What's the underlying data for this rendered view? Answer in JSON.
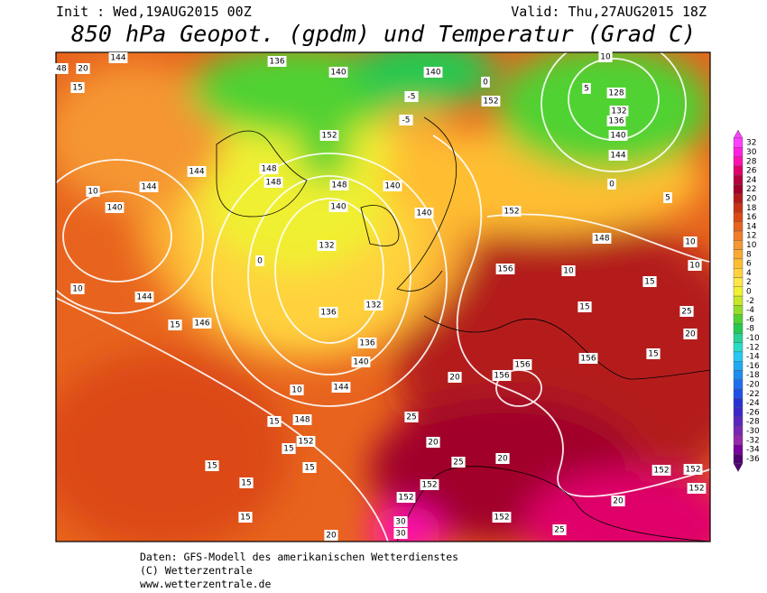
{
  "header": {
    "init": "Init : Wed,19AUG2015 00Z",
    "valid": "Valid: Thu,27AUG2015 18Z",
    "title": "850 hPa Geopot. (gpdm) und Temperatur (Grad C)"
  },
  "colorbar": {
    "labels": [
      32,
      30,
      28,
      26,
      24,
      22,
      20,
      18,
      16,
      14,
      12,
      10,
      8,
      6,
      4,
      2,
      0,
      -2,
      -4,
      -6,
      -8,
      -10,
      -12,
      -14,
      -16,
      -18,
      -20,
      -22,
      -24,
      -26,
      -28,
      -30,
      -32,
      -34,
      -36
    ],
    "colors": [
      "#ff40ff",
      "#ff20e0",
      "#ff10b0",
      "#e0006a",
      "#b4003c",
      "#a0002a",
      "#b41a1a",
      "#c83214",
      "#dc4a14",
      "#e6641e",
      "#f07d28",
      "#f59632",
      "#faaa32",
      "#ffbe32",
      "#ffd23c",
      "#ffe646",
      "#f0f032",
      "#c8e628",
      "#96dc28",
      "#50d232",
      "#28c850",
      "#28d296",
      "#28dcc8",
      "#28c8f0",
      "#1eaaf0",
      "#1e8cf0",
      "#1e6ef0",
      "#1e50e6",
      "#2832d2",
      "#3c28c8",
      "#5a28be",
      "#7828b4",
      "#9628aa",
      "#7800a0",
      "#500070"
    ]
  },
  "map": {
    "contour_labels": [
      "144",
      "136",
      "140",
      "140",
      "152",
      "128",
      "132",
      "136",
      "140",
      "144",
      "152",
      "148",
      "148",
      "144",
      "144",
      "140",
      "140",
      "140",
      "140",
      "148",
      "132",
      "136",
      "132",
      "136",
      "140",
      "144",
      "146",
      "144",
      "148",
      "152",
      "152",
      "156",
      "148",
      "156",
      "156",
      "156",
      "152",
      "152",
      "152",
      "152",
      "152",
      "152",
      "15",
      "10",
      "10",
      "15",
      "15",
      "15",
      "15",
      "15",
      "15",
      "20",
      "20",
      "25",
      "25",
      "20",
      "20",
      "25",
      "30",
      "30",
      "20",
      "15",
      "10",
      "10",
      "10",
      "15",
      "15",
      "20",
      "25",
      "15",
      "-5",
      "-5",
      "0",
      "10",
      "5",
      "0",
      "5",
      "10",
      "0",
      "48",
      "20"
    ]
  },
  "footer": {
    "lines": [
      "Daten: GFS-Modell des amerikanischen Wetterdienstes",
      "(C) Wetterzentrale",
      "www.wetterzentrale.de"
    ]
  }
}
